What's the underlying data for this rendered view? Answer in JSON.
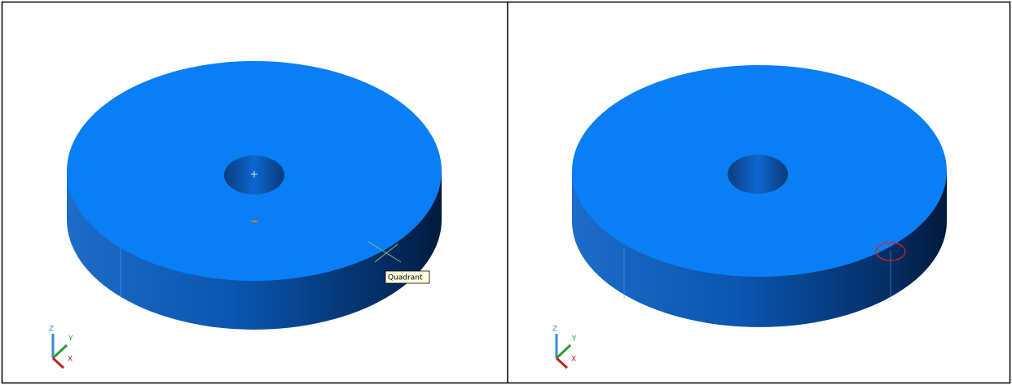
{
  "panels": [
    {
      "tooltip": "Quadrant",
      "ucs": {
        "z": "Z",
        "y": "Y",
        "x": "X"
      }
    },
    {
      "ucs": {
        "z": "Z",
        "y": "Y",
        "x": "X"
      }
    }
  ]
}
